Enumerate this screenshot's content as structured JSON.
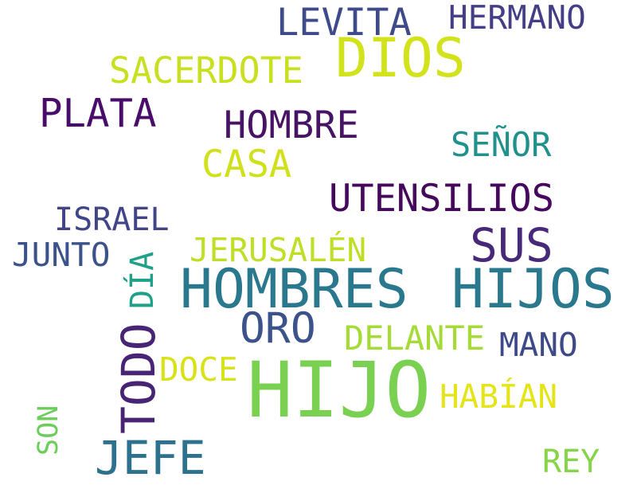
{
  "word_cloud": {
    "words": [
      {
        "text": "HIJO",
        "color": "#7ad151"
      },
      {
        "text": "HOMBRES",
        "color": "#2a788e"
      },
      {
        "text": "HIJOS",
        "color": "#2a788e"
      },
      {
        "text": "DIOS",
        "color": "#d2e21b"
      },
      {
        "text": "SUS",
        "color": "#482878"
      },
      {
        "text": "TODO",
        "color": "#482475"
      },
      {
        "text": "JEFE",
        "color": "#2c728e"
      },
      {
        "text": "PLATA",
        "color": "#4a0c6b"
      },
      {
        "text": "ORO",
        "color": "#3b528b"
      },
      {
        "text": "LEVITA",
        "color": "#3e4a89"
      },
      {
        "text": "UTENSILIOS",
        "color": "#46085c"
      },
      {
        "text": "HOMBRE",
        "color": "#471365"
      },
      {
        "text": "HERMANO",
        "color": "#433e85"
      },
      {
        "text": "SACERDOTE",
        "color": "#c8e020"
      },
      {
        "text": "CASA",
        "color": "#d0e11c"
      },
      {
        "text": "SEÑOR",
        "color": "#21918c"
      },
      {
        "text": "ISRAEL",
        "color": "#414487"
      },
      {
        "text": "JERUSALÉN",
        "color": "#bddf26"
      },
      {
        "text": "JUNTO",
        "color": "#3b528b"
      },
      {
        "text": "DÍA",
        "color": "#1fa088"
      },
      {
        "text": "DELANTE",
        "color": "#a5db36"
      },
      {
        "text": "MANO",
        "color": "#3e4989"
      },
      {
        "text": "DOCE",
        "color": "#d8e219"
      },
      {
        "text": "HABÍAN",
        "color": "#e5e419"
      },
      {
        "text": "SON",
        "color": "#6ccd5a"
      },
      {
        "text": "REY",
        "color": "#86d549"
      }
    ]
  }
}
